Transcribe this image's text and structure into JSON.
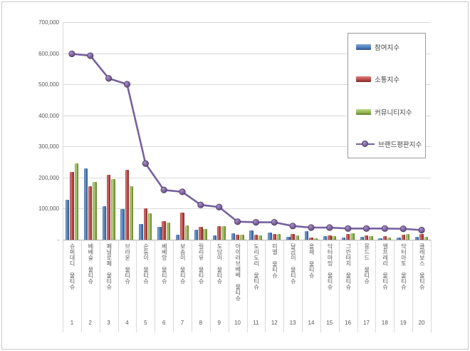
{
  "chart_data": {
    "type": "bar",
    "title": "",
    "categories": [
      "슈퍼대디 물티슈",
      "베베숲 물티슈",
      "페널로페 물티슈",
      "브라운 물티슈",
      "순둥이 물티슈",
      "베베앙 물티슈",
      "보솜이 물티슈",
      "릴리유 물티슈",
      "도담이 물티슈",
      "아이러브베베 물티슈",
      "도리도리 물티슈",
      "미엘 물티슈",
      "달곰이 물티슈",
      "올제 물티슈",
      "닥터마밍 물티슈",
      "그린터치 물티슈",
      "몽드드 물티슈",
      "엘프레리 물티슈",
      "닥터아토 물티슈",
      "클레보스 물티슈"
    ],
    "ranks": [
      "1",
      "2",
      "3",
      "4",
      "5",
      "6",
      "7",
      "8",
      "9",
      "10",
      "11",
      "12",
      "13",
      "14",
      "15",
      "16",
      "17",
      "18",
      "19",
      "20"
    ],
    "series": [
      {
        "name": "참여지수",
        "render": "bar",
        "color": "#4f81bd",
        "values": [
          129000,
          230000,
          109000,
          99000,
          51000,
          41000,
          17000,
          31000,
          14000,
          21000,
          30000,
          23000,
          9000,
          28000,
          11000,
          8000,
          9000,
          5000,
          6000,
          10000
        ]
      },
      {
        "name": "소통지수",
        "render": "bar",
        "color": "#be4b48",
        "values": [
          218000,
          173000,
          209000,
          224000,
          102000,
          60000,
          87000,
          41000,
          44000,
          15000,
          16000,
          18000,
          18000,
          8000,
          13000,
          18000,
          13000,
          11000,
          16000,
          18000
        ]
      },
      {
        "name": "커뮤니티지수",
        "render": "bar",
        "color": "#98b954",
        "values": [
          245000,
          187000,
          195000,
          171000,
          85000,
          55000,
          47000,
          34000,
          44000,
          15000,
          13000,
          18000,
          14000,
          5000,
          11000,
          21000,
          11000,
          8000,
          18000,
          10000
        ]
      },
      {
        "name": "브랜드평판지수",
        "render": "line",
        "color": "#8064a2",
        "values": [
          598000,
          592000,
          519000,
          500000,
          245000,
          160000,
          154000,
          112000,
          105000,
          58000,
          56000,
          56000,
          44000,
          39000,
          39000,
          36000,
          36000,
          36000,
          35000,
          31000
        ]
      }
    ],
    "y_axis": {
      "min": 0,
      "max": 700000,
      "tick_step": 100000,
      "tick_labels": [
        "700,000",
        "600,000",
        "500,000",
        "400,000",
        "300,000",
        "200,000",
        "100,000",
        "-"
      ]
    },
    "grid": true,
    "legend_position": "top-right"
  }
}
